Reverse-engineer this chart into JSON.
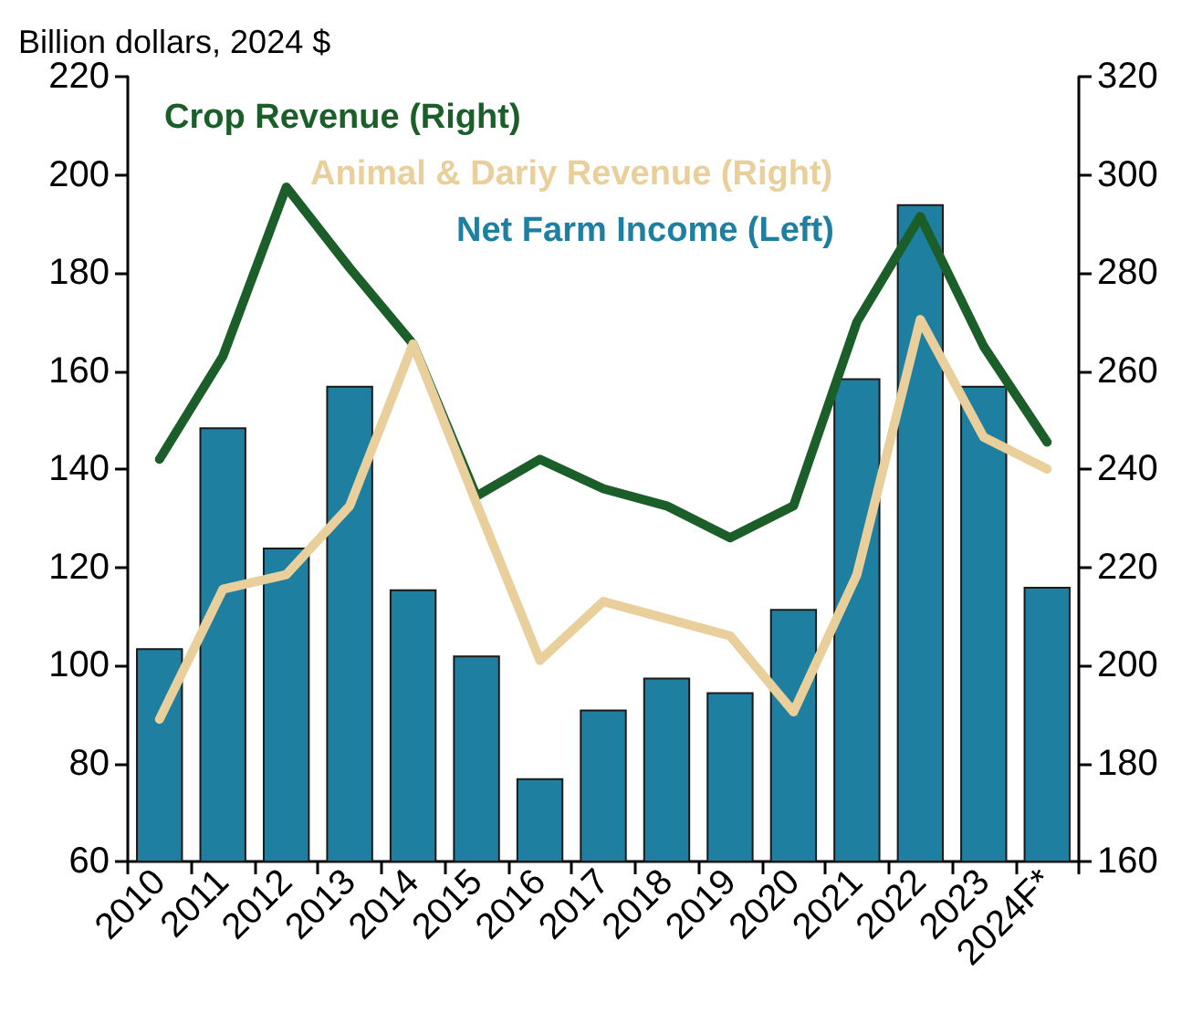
{
  "chart_data": {
    "type": "bar",
    "ylabel": "Billion dollars, 2024 $",
    "categories": [
      "2010",
      "2011",
      "2012",
      "2013",
      "2014",
      "2015",
      "2016",
      "2017",
      "2018",
      "2019",
      "2020",
      "2021",
      "2022",
      "2023",
      "2024F*"
    ],
    "series": [
      {
        "name": "Crop Revenue (Right)",
        "type": "line",
        "axis": "y2",
        "color": "#1b5e2a",
        "values": [
          242,
          263,
          297.5,
          281,
          265.5,
          234.5,
          242,
          236,
          232.5,
          226,
          232.5,
          270,
          291.5,
          265,
          245.5
        ]
      },
      {
        "name": "Animal & Dariy Revenue (Right)",
        "type": "line",
        "axis": "y2",
        "color": "#e8cf9b",
        "values": [
          189,
          215.5,
          218.5,
          232.5,
          265.5,
          233,
          201,
          213,
          209.5,
          206,
          190.5,
          218.5,
          270.5,
          246.5,
          240
        ]
      },
      {
        "name": "Net Farm Income (Left)",
        "color": "#1f7fa0",
        "values": [
          103.5,
          148.5,
          124,
          157,
          115.5,
          102,
          77,
          91,
          97.5,
          94.5,
          111.5,
          158.5,
          194,
          157,
          116
        ]
      }
    ],
    "ylim": [
      60,
      220
    ],
    "yticks": [
      60,
      80,
      100,
      120,
      140,
      160,
      180,
      200,
      220
    ],
    "y2lim": [
      160,
      320
    ],
    "y2ticks": [
      160,
      180,
      200,
      220,
      240,
      260,
      280,
      300,
      320
    ],
    "grid": false,
    "legend": "top left"
  }
}
